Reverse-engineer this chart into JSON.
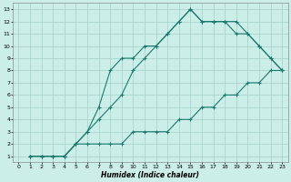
{
  "xlabel": "Humidex (Indice chaleur)",
  "bg_color": "#cceee8",
  "grid_color": "#aad4ce",
  "line_color": "#1a7a6e",
  "xlim": [
    -0.5,
    23.5
  ],
  "ylim": [
    0.5,
    13.5
  ],
  "xticks": [
    0,
    1,
    2,
    3,
    4,
    5,
    6,
    7,
    8,
    9,
    10,
    11,
    12,
    13,
    14,
    15,
    16,
    17,
    18,
    19,
    20,
    21,
    22,
    23
  ],
  "yticks": [
    1,
    2,
    3,
    4,
    5,
    6,
    7,
    8,
    9,
    10,
    11,
    12,
    13
  ],
  "line1_x": [
    1,
    2,
    3,
    4,
    5,
    6,
    7,
    8,
    9,
    10,
    11,
    12,
    13,
    14,
    15,
    16,
    17,
    18,
    19,
    20,
    21,
    22,
    23
  ],
  "line1_y": [
    1,
    1,
    1,
    1,
    2,
    2,
    2,
    2,
    2,
    3,
    3,
    3,
    3,
    4,
    4,
    5,
    5,
    6,
    6,
    7,
    7,
    8,
    8
  ],
  "line2_x": [
    1,
    2,
    3,
    4,
    5,
    6,
    7,
    8,
    9,
    10,
    11,
    12,
    13,
    14,
    15,
    16,
    17,
    18,
    19,
    20,
    21,
    22,
    23
  ],
  "line2_y": [
    1,
    1,
    1,
    1,
    2,
    3,
    4,
    5,
    6,
    8,
    9,
    10,
    11,
    12,
    13,
    12,
    12,
    12,
    11,
    11,
    10,
    9,
    8
  ],
  "line3_x": [
    1,
    2,
    3,
    4,
    5,
    6,
    7,
    8,
    9,
    10,
    11,
    12,
    13,
    14,
    15,
    16,
    17,
    18,
    19,
    20,
    21,
    22,
    23
  ],
  "line3_y": [
    1,
    1,
    1,
    1,
    2,
    3,
    5,
    8,
    9,
    9,
    10,
    10,
    11,
    12,
    13,
    12,
    12,
    12,
    12,
    11,
    10,
    9,
    8
  ]
}
